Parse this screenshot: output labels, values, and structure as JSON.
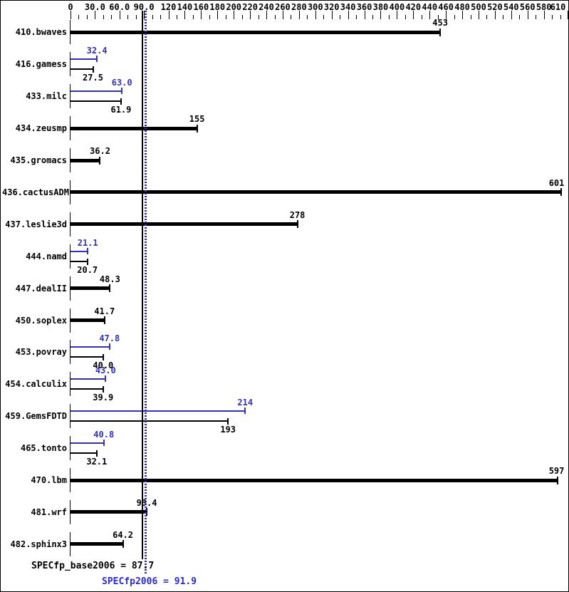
{
  "chart_data": {
    "type": "bar",
    "orientation": "horizontal",
    "title": "",
    "axis": {
      "position": "top",
      "min": 0,
      "max": 610,
      "minor_step": 10,
      "major_ticks": [
        {
          "v": 0,
          "label": "0"
        },
        {
          "v": 30,
          "label": "30.0"
        },
        {
          "v": 60,
          "label": "60.0"
        },
        {
          "v": 90,
          "label": "90.0"
        },
        {
          "v": 120,
          "label": "120"
        },
        {
          "v": 140,
          "label": "140"
        },
        {
          "v": 160,
          "label": "160"
        },
        {
          "v": 180,
          "label": "180"
        },
        {
          "v": 200,
          "label": "200"
        },
        {
          "v": 220,
          "label": "220"
        },
        {
          "v": 240,
          "label": "240"
        },
        {
          "v": 260,
          "label": "260"
        },
        {
          "v": 280,
          "label": "280"
        },
        {
          "v": 300,
          "label": "300"
        },
        {
          "v": 320,
          "label": "320"
        },
        {
          "v": 340,
          "label": "340"
        },
        {
          "v": 360,
          "label": "360"
        },
        {
          "v": 380,
          "label": "380"
        },
        {
          "v": 400,
          "label": "400"
        },
        {
          "v": 420,
          "label": "420"
        },
        {
          "v": 440,
          "label": "440"
        },
        {
          "v": 460,
          "label": "460"
        },
        {
          "v": 480,
          "label": "480"
        },
        {
          "v": 500,
          "label": "500"
        },
        {
          "v": 520,
          "label": "520"
        },
        {
          "v": 540,
          "label": "540"
        },
        {
          "v": 560,
          "label": "560"
        },
        {
          "v": 580,
          "label": "580"
        },
        {
          "v": 610,
          "label": "610"
        }
      ]
    },
    "series_legend": {
      "base": "SPECfp_base2006 (black bars)",
      "peak": "SPECfp2006 (blue bars)"
    },
    "benchmarks": [
      {
        "name": "410.bwaves",
        "base": 453,
        "base_label": "453",
        "peak": null,
        "peak_label": null
      },
      {
        "name": "416.gamess",
        "base": 27.5,
        "base_label": "27.5",
        "peak": 32.4,
        "peak_label": "32.4"
      },
      {
        "name": "433.milc",
        "base": 61.9,
        "base_label": "61.9",
        "peak": 63.0,
        "peak_label": "63.0"
      },
      {
        "name": "434.zeusmp",
        "base": 155,
        "base_label": "155",
        "peak": null,
        "peak_label": null
      },
      {
        "name": "435.gromacs",
        "base": 36.2,
        "base_label": "36.2",
        "peak": null,
        "peak_label": null
      },
      {
        "name": "436.cactusADM",
        "base": 601,
        "base_label": "601",
        "peak": null,
        "peak_label": null
      },
      {
        "name": "437.leslie3d",
        "base": 278,
        "base_label": "278",
        "peak": null,
        "peak_label": null
      },
      {
        "name": "444.namd",
        "base": 20.7,
        "base_label": "20.7",
        "peak": 21.1,
        "peak_label": "21.1"
      },
      {
        "name": "447.dealII",
        "base": 48.3,
        "base_label": "48.3",
        "peak": null,
        "peak_label": null
      },
      {
        "name": "450.soplex",
        "base": 41.7,
        "base_label": "41.7",
        "peak": null,
        "peak_label": null
      },
      {
        "name": "453.povray",
        "base": 40.0,
        "base_label": "40.0",
        "peak": 47.8,
        "peak_label": "47.8"
      },
      {
        "name": "454.calculix",
        "base": 39.9,
        "base_label": "39.9",
        "peak": 43.0,
        "peak_label": "43.0"
      },
      {
        "name": "459.GemsFDTD",
        "base": 193,
        "base_label": "193",
        "peak": 214,
        "peak_label": "214"
      },
      {
        "name": "465.tonto",
        "base": 32.1,
        "base_label": "32.1",
        "peak": 40.8,
        "peak_label": "40.8"
      },
      {
        "name": "470.lbm",
        "base": 597,
        "base_label": "597",
        "peak": null,
        "peak_label": null
      },
      {
        "name": "481.wrf",
        "base": 93.4,
        "base_label": "93.4",
        "peak": null,
        "peak_label": null
      },
      {
        "name": "482.sphinx3",
        "base": 64.2,
        "base_label": "64.2",
        "peak": null,
        "peak_label": null
      }
    ],
    "summary": {
      "base_value": 87.7,
      "base_label": "SPECfp_base2006 = 87.7",
      "peak_value": 91.9,
      "peak_label": "SPECfp2006 = 91.9"
    },
    "colors": {
      "base": "#000000",
      "peak": "#3232b8",
      "peak_line": "#2a2ac8"
    }
  }
}
